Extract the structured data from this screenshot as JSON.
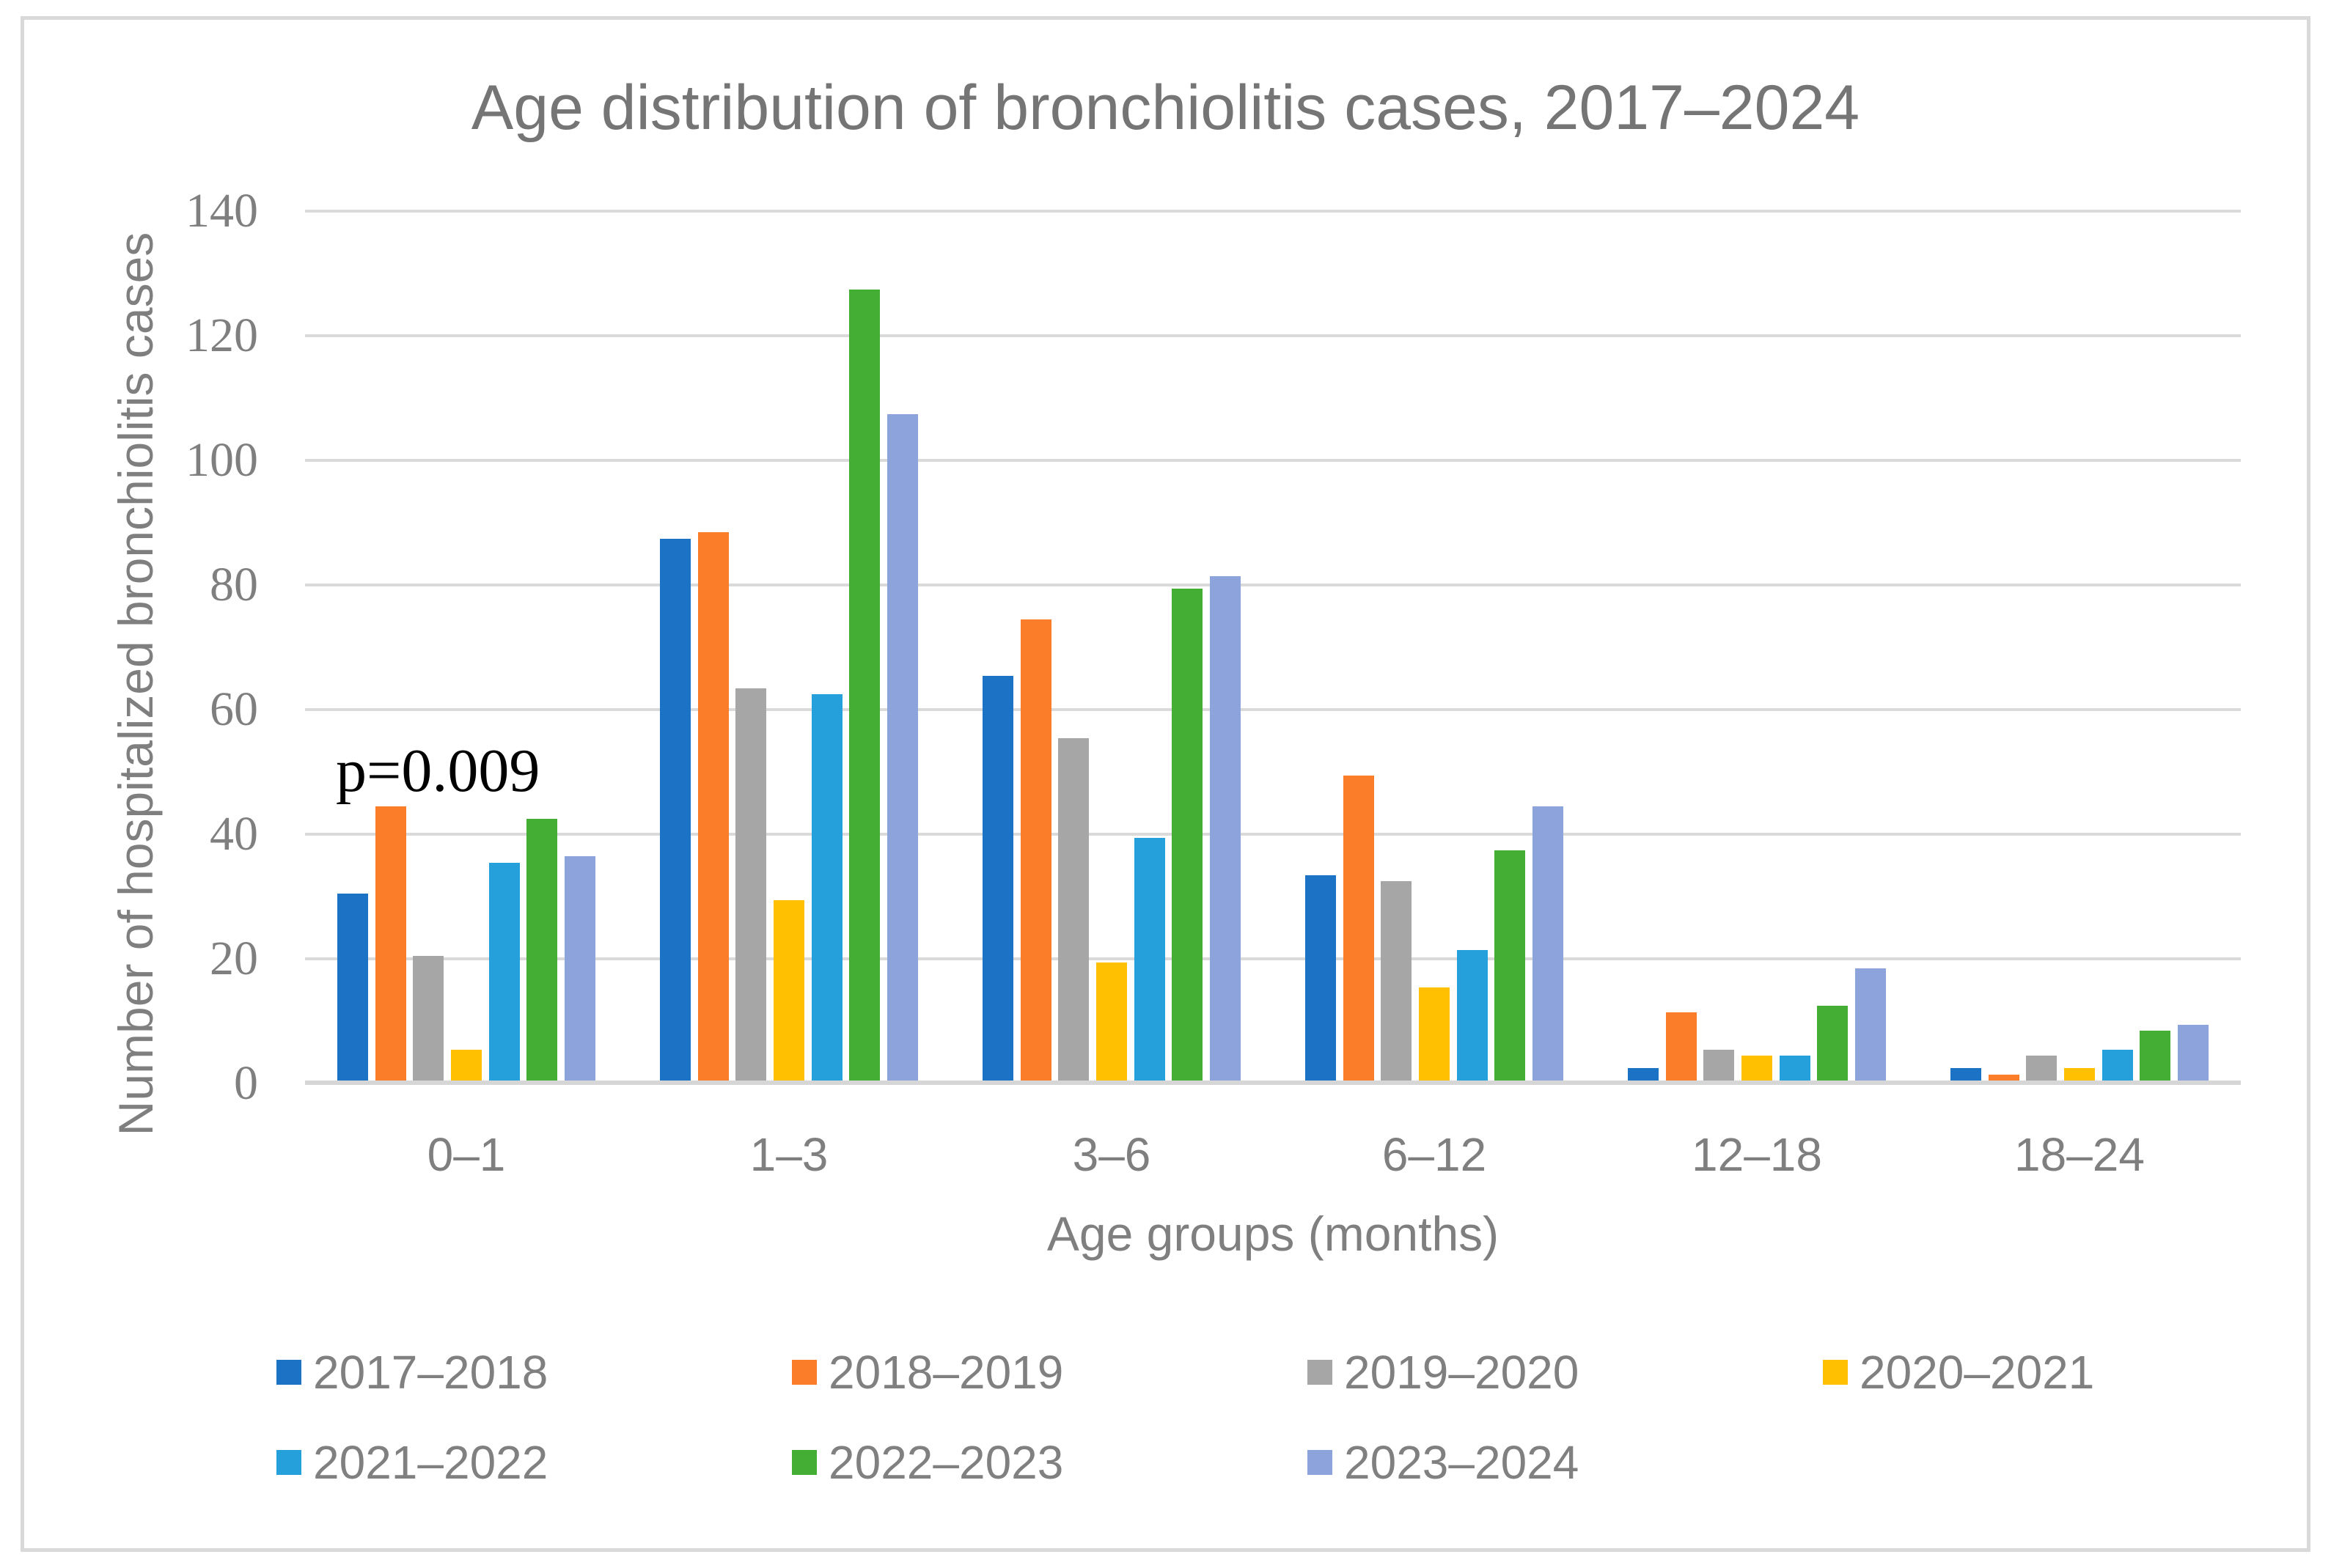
{
  "figure": {
    "title": "Age distribution of bronchiolitis cases, 2017–2024"
  },
  "chart_data": {
    "type": "bar",
    "title": "Age distribution of bronchiolitis cases, 2017–2024",
    "xlabel": "Age groups (months)",
    "ylabel": "Number of hospitalized bronchiolitis cases",
    "ylim": [
      0,
      140
    ],
    "yticks": [
      0,
      20,
      40,
      60,
      80,
      100,
      120,
      140
    ],
    "grid": true,
    "legend_position": "bottom",
    "annotation": {
      "text": "p=0.009",
      "target_category": "0–1"
    },
    "categories": [
      "0–1",
      "1–3",
      "3–6",
      "6–12",
      "12–18",
      "18–24"
    ],
    "series": [
      {
        "name": "2017–2018",
        "color": "#1C73C6",
        "values": [
          30,
          87,
          65,
          33,
          2,
          2
        ]
      },
      {
        "name": "2018–2019",
        "color": "#FB7D2A",
        "values": [
          44,
          88,
          74,
          49,
          11,
          1
        ]
      },
      {
        "name": "2019–2020",
        "color": "#A6A6A6",
        "values": [
          20,
          63,
          55,
          32,
          5,
          4
        ]
      },
      {
        "name": "2020–2021",
        "color": "#FEC001",
        "values": [
          5,
          29,
          19,
          15,
          4,
          2
        ]
      },
      {
        "name": "2021–2022",
        "color": "#26A0DA",
        "values": [
          35,
          62,
          39,
          21,
          4,
          5
        ]
      },
      {
        "name": "2022–2023",
        "color": "#43AD34",
        "values": [
          42,
          127,
          79,
          37,
          12,
          8
        ]
      },
      {
        "name": "2023–2024",
        "color": "#8CA3DC",
        "values": [
          36,
          107,
          81,
          44,
          18,
          9
        ]
      }
    ]
  },
  "style": {
    "grid_color": "#dadada",
    "axis_color": "#d6d6d6",
    "text_color": "#7f7f7f",
    "title_color": "#757575",
    "annotation_color": "#000000",
    "frame_color": "#d9d9d9"
  }
}
